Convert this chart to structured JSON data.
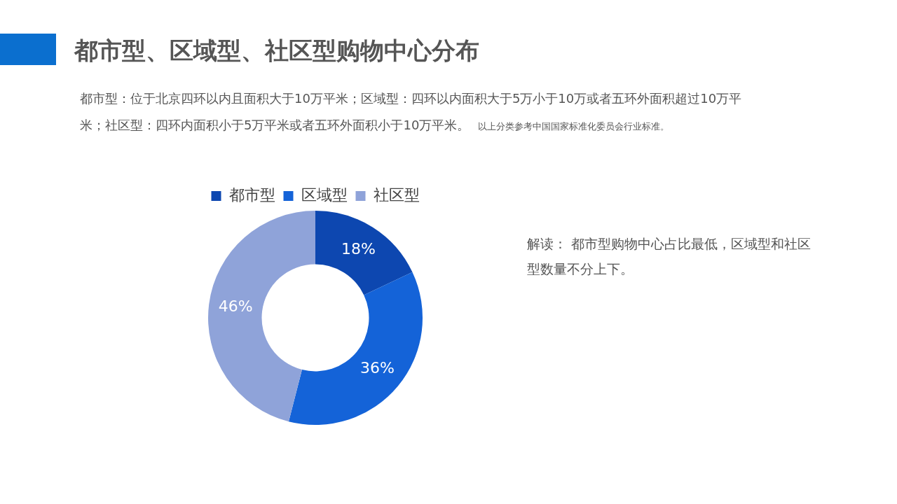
{
  "chart_data": {
    "type": "donut",
    "title": "都市型、区域型、社区型购物中心分布",
    "subtitle": "都市型：位于北京四环以内且面积大于10万平米；区域型：四环以内面积大于5万小于10万或者五环外面积超过10万平米；社区型：四环内面积小于5万平米或者五环外面积小于10万平米。",
    "annotations": [
      "以上分类参考中国国家标准化委员会行业标准。",
      "解读： 都市型购物中心占比最低，区域型和社区型数量不分上下。"
    ],
    "categories": [
      "都市型",
      "区域型",
      "社区型"
    ],
    "values": [
      18,
      36,
      46
    ],
    "value_labels": [
      "18%",
      "36%",
      "46%"
    ],
    "colors": [
      "#0d47b0",
      "#1463d8",
      "#8fa3d9"
    ],
    "legend": "top"
  }
}
